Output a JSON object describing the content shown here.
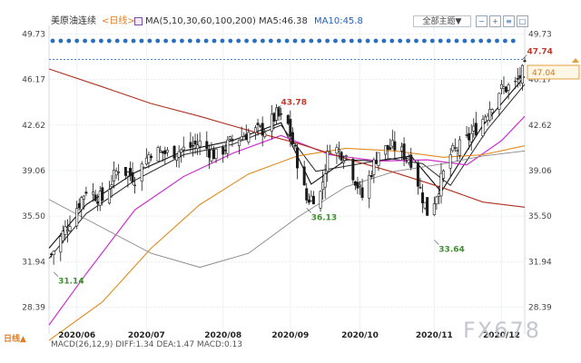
{
  "header": {
    "name": "美原油连续",
    "period": "<日线>",
    "ma_label": "MA(5,10,30,60,100,200)",
    "ma5": "MA5:46.38",
    "ma10": "MA10:45.8",
    "theme_button": "全部主题▼"
  },
  "price_box": "47.04",
  "bottom": {
    "period": "日线▲",
    "macd": "MACD(26,12,9) DIFF:1.34 DEA:1.47 MACD:0.13"
  },
  "watermark": "FX678",
  "colors": {
    "candles": "#1a1a1a",
    "ma5": "#111111",
    "ma10": "#2a2a2a",
    "ma30": "#cc33cc",
    "ma60": "#e08a1e",
    "ma100": "#888888",
    "ma200": "#b03020",
    "dots": "#2a6fc0",
    "high_label": "#c0392b",
    "low_label": "#3f8f2f"
  },
  "chart_data": {
    "type": "candlestick",
    "yticks": [
      49.73,
      46.17,
      42.62,
      39.06,
      35.5,
      31.94,
      28.39
    ],
    "ylim": [
      26.3,
      50.4
    ],
    "xlim": [
      "2020-05-20",
      "2020-12-11"
    ],
    "month_ticks": [
      {
        "label": "2020/06",
        "date": "2020-06-01"
      },
      {
        "label": "2020/07",
        "date": "2020-07-01"
      },
      {
        "label": "2020/08",
        "date": "2020-08-03"
      },
      {
        "label": "2020/09",
        "date": "2020-09-01"
      },
      {
        "label": "2020/10",
        "date": "2020-10-01"
      },
      {
        "label": "2020/11",
        "date": "2020-11-02"
      },
      {
        "label": "2020/12",
        "date": "2020-12-01"
      }
    ],
    "current_price": 47.04,
    "reference_level": 47.74,
    "annotations": [
      {
        "text": "31.14",
        "date": "2020-05-22",
        "value": 31.14,
        "kind": "low"
      },
      {
        "text": "43.78",
        "date": "2020-08-26",
        "value": 43.78,
        "kind": "high"
      },
      {
        "text": "36.13",
        "date": "2020-09-08",
        "value": 36.13,
        "kind": "low"
      },
      {
        "text": "33.64",
        "date": "2020-11-02",
        "value": 33.64,
        "kind": "low"
      },
      {
        "text": "47.74",
        "date": "2020-12-10",
        "value": 47.74,
        "kind": "high"
      }
    ],
    "close_path": [
      {
        "date": "2020-05-21",
        "value": 32.5
      },
      {
        "date": "2020-05-28",
        "value": 34.8
      },
      {
        "date": "2020-06-05",
        "value": 37.6
      },
      {
        "date": "2020-06-12",
        "value": 36.8
      },
      {
        "date": "2020-06-19",
        "value": 39.3
      },
      {
        "date": "2020-06-26",
        "value": 38.5
      },
      {
        "date": "2020-07-03",
        "value": 40.6
      },
      {
        "date": "2020-07-10",
        "value": 40.4
      },
      {
        "date": "2020-07-17",
        "value": 40.7
      },
      {
        "date": "2020-07-24",
        "value": 41.2
      },
      {
        "date": "2020-07-31",
        "value": 40.2
      },
      {
        "date": "2020-08-07",
        "value": 41.4
      },
      {
        "date": "2020-08-14",
        "value": 42.0
      },
      {
        "date": "2020-08-21",
        "value": 42.3
      },
      {
        "date": "2020-08-26",
        "value": 43.4
      },
      {
        "date": "2020-08-31",
        "value": 42.6
      },
      {
        "date": "2020-09-04",
        "value": 39.8
      },
      {
        "date": "2020-09-08",
        "value": 36.8
      },
      {
        "date": "2020-09-14",
        "value": 37.3
      },
      {
        "date": "2020-09-18",
        "value": 41.1
      },
      {
        "date": "2020-09-25",
        "value": 40.2
      },
      {
        "date": "2020-10-02",
        "value": 37.0
      },
      {
        "date": "2020-10-09",
        "value": 40.6
      },
      {
        "date": "2020-10-16",
        "value": 40.9
      },
      {
        "date": "2020-10-23",
        "value": 39.9
      },
      {
        "date": "2020-10-30",
        "value": 35.8
      },
      {
        "date": "2020-11-02",
        "value": 36.8
      },
      {
        "date": "2020-11-09",
        "value": 40.3
      },
      {
        "date": "2020-11-16",
        "value": 41.4
      },
      {
        "date": "2020-11-23",
        "value": 43.1
      },
      {
        "date": "2020-11-30",
        "value": 45.3
      },
      {
        "date": "2020-12-07",
        "value": 45.8
      },
      {
        "date": "2020-12-11",
        "value": 47.0
      }
    ],
    "series": [
      {
        "name": "MA5",
        "values": [
          {
            "date": "2020-05-20",
            "value": 33.0
          },
          {
            "date": "2020-06-05",
            "value": 36.4
          },
          {
            "date": "2020-06-26",
            "value": 38.9
          },
          {
            "date": "2020-07-17",
            "value": 40.6
          },
          {
            "date": "2020-08-07",
            "value": 41.4
          },
          {
            "date": "2020-08-28",
            "value": 42.8
          },
          {
            "date": "2020-09-10",
            "value": 38.0
          },
          {
            "date": "2020-09-25",
            "value": 39.9
          },
          {
            "date": "2020-10-09",
            "value": 39.8
          },
          {
            "date": "2020-10-23",
            "value": 40.2
          },
          {
            "date": "2020-11-05",
            "value": 37.4
          },
          {
            "date": "2020-11-23",
            "value": 42.6
          },
          {
            "date": "2020-12-11",
            "value": 46.4
          }
        ]
      },
      {
        "name": "MA10",
        "values": [
          {
            "date": "2020-05-20",
            "value": 32.2
          },
          {
            "date": "2020-06-05",
            "value": 35.7
          },
          {
            "date": "2020-06-26",
            "value": 38.3
          },
          {
            "date": "2020-07-17",
            "value": 40.3
          },
          {
            "date": "2020-08-07",
            "value": 41.1
          },
          {
            "date": "2020-08-28",
            "value": 42.6
          },
          {
            "date": "2020-09-12",
            "value": 39.0
          },
          {
            "date": "2020-09-28",
            "value": 39.5
          },
          {
            "date": "2020-10-14",
            "value": 40.0
          },
          {
            "date": "2020-10-28",
            "value": 39.6
          },
          {
            "date": "2020-11-09",
            "value": 37.9
          },
          {
            "date": "2020-11-25",
            "value": 42.3
          },
          {
            "date": "2020-12-11",
            "value": 45.8
          }
        ]
      },
      {
        "name": "MA30",
        "values": [
          {
            "date": "2020-05-20",
            "value": 27.0
          },
          {
            "date": "2020-06-05",
            "value": 31.0
          },
          {
            "date": "2020-06-26",
            "value": 36.0
          },
          {
            "date": "2020-07-17",
            "value": 38.6
          },
          {
            "date": "2020-08-07",
            "value": 40.4
          },
          {
            "date": "2020-08-28",
            "value": 41.8
          },
          {
            "date": "2020-09-18",
            "value": 40.3
          },
          {
            "date": "2020-10-09",
            "value": 39.8
          },
          {
            "date": "2020-10-30",
            "value": 39.9
          },
          {
            "date": "2020-11-16",
            "value": 39.5
          },
          {
            "date": "2020-12-01",
            "value": 41.4
          },
          {
            "date": "2020-12-11",
            "value": 43.3
          }
        ]
      },
      {
        "name": "MA60",
        "values": [
          {
            "date": "2020-05-20",
            "value": 25.8
          },
          {
            "date": "2020-06-12",
            "value": 28.8
          },
          {
            "date": "2020-07-03",
            "value": 33.0
          },
          {
            "date": "2020-07-24",
            "value": 36.4
          },
          {
            "date": "2020-08-14",
            "value": 38.8
          },
          {
            "date": "2020-09-04",
            "value": 40.2
          },
          {
            "date": "2020-09-25",
            "value": 40.8
          },
          {
            "date": "2020-10-16",
            "value": 40.6
          },
          {
            "date": "2020-11-06",
            "value": 40.1
          },
          {
            "date": "2020-11-23",
            "value": 40.3
          },
          {
            "date": "2020-12-11",
            "value": 41.0
          }
        ]
      },
      {
        "name": "MA100",
        "values": [
          {
            "date": "2020-05-20",
            "value": 36.8
          },
          {
            "date": "2020-06-12",
            "value": 34.6
          },
          {
            "date": "2020-07-03",
            "value": 32.6
          },
          {
            "date": "2020-07-24",
            "value": 31.5
          },
          {
            "date": "2020-08-14",
            "value": 32.6
          },
          {
            "date": "2020-09-04",
            "value": 35.4
          },
          {
            "date": "2020-09-25",
            "value": 37.8
          },
          {
            "date": "2020-10-16",
            "value": 39.0
          },
          {
            "date": "2020-11-06",
            "value": 39.6
          },
          {
            "date": "2020-11-23",
            "value": 40.2
          },
          {
            "date": "2020-12-11",
            "value": 40.6
          }
        ]
      },
      {
        "name": "MA200",
        "values": [
          {
            "date": "2020-05-20",
            "value": 47.0
          },
          {
            "date": "2020-06-12",
            "value": 45.6
          },
          {
            "date": "2020-07-03",
            "value": 44.3
          },
          {
            "date": "2020-07-24",
            "value": 43.3
          },
          {
            "date": "2020-08-14",
            "value": 42.2
          },
          {
            "date": "2020-09-04",
            "value": 41.2
          },
          {
            "date": "2020-09-25",
            "value": 40.0
          },
          {
            "date": "2020-10-16",
            "value": 38.9
          },
          {
            "date": "2020-11-06",
            "value": 37.7
          },
          {
            "date": "2020-11-23",
            "value": 36.6
          },
          {
            "date": "2020-12-11",
            "value": 36.2
          }
        ]
      }
    ]
  }
}
